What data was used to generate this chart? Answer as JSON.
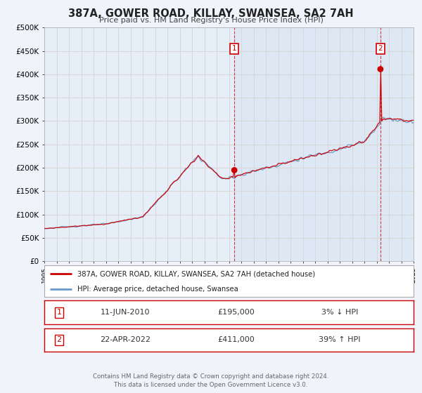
{
  "title": "387A, GOWER ROAD, KILLAY, SWANSEA, SA2 7AH",
  "subtitle": "Price paid vs. HM Land Registry's House Price Index (HPI)",
  "bg_color": "#f0f4fa",
  "plot_bg_color": "#e6eef8",
  "grid_color": "#d8d8d8",
  "line1_color": "#cc0000",
  "line2_color": "#6699cc",
  "marker_color": "#cc0000",
  "annotation_box_color": "#cc0000",
  "vline_color": "#cc0000",
  "sale1_year": 2010.44,
  "sale1_price": 195000,
  "sale1_label": "1",
  "sale1_text": "11-JUN-2010",
  "sale1_amount": "£195,000",
  "sale1_hpi": "3% ↓ HPI",
  "sale2_year": 2022.31,
  "sale2_price": 411000,
  "sale2_label": "2",
  "sale2_text": "22-APR-2022",
  "sale2_amount": "£411,000",
  "sale2_hpi": "39% ↑ HPI",
  "ylim_max": 500000,
  "ytick_step": 50000,
  "legend_line1": "387A, GOWER ROAD, KILLAY, SWANSEA, SA2 7AH (detached house)",
  "legend_line2": "HPI: Average price, detached house, Swansea",
  "footnote": "Contains HM Land Registry data © Crown copyright and database right 2024.\nThis data is licensed under the Open Government Licence v3.0.",
  "xstart": 1995,
  "xend": 2025
}
